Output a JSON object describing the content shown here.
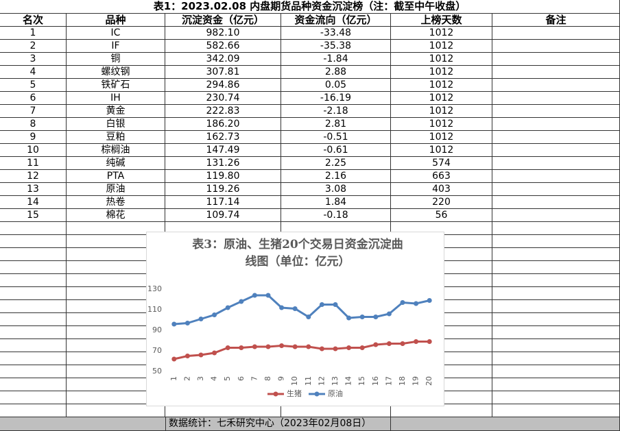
{
  "title": "表1：2023.02.08 内盘期货品种资金沉淀榜（注：截至中午收盘）",
  "table": {
    "header": [
      "名次",
      "品种",
      "沉淀资金（亿元）",
      "资金流向（亿元）",
      "上榜天数",
      "备注"
    ],
    "rows": [
      [
        "1",
        "IC",
        "982.10",
        "-33.48",
        "1012"
      ],
      [
        "2",
        "IF",
        "582.66",
        "-35.38",
        "1012"
      ],
      [
        "3",
        "铜",
        "342.09",
        "-1.84",
        "1012"
      ],
      [
        "4",
        "螺纹钢",
        "307.81",
        "2.88",
        "1012"
      ],
      [
        "5",
        "铁矿石",
        "294.86",
        "0.05",
        "1012"
      ],
      [
        "6",
        "IH",
        "230.74",
        "-16.19",
        "1012"
      ],
      [
        "7",
        "黄金",
        "222.83",
        "-2.18",
        "1012"
      ],
      [
        "8",
        "白银",
        "186.20",
        "2.81",
        "1012"
      ],
      [
        "9",
        "豆粕",
        "162.73",
        "-0.51",
        "1012"
      ],
      [
        "10",
        "棕榈油",
        "147.49",
        "-0.61",
        "1012"
      ],
      [
        "11",
        "纯碱",
        "131.26",
        "2.25",
        "574"
      ],
      [
        "12",
        "PTA",
        "119.80",
        "2.16",
        "663"
      ],
      [
        "13",
        "原油",
        "119.26",
        "3.08",
        "403"
      ],
      [
        "14",
        "热卷",
        "117.14",
        "1.84",
        "220"
      ],
      [
        "15",
        "棉花",
        "109.74",
        "-0.18",
        "56"
      ]
    ]
  },
  "footer": "数据统计：七禾研究中心（2023年02月08日）",
  "chart_data": {
    "type": "line",
    "title": "表3：原油、生猪20个交易日资金沉淀曲线图（单位：亿元）",
    "categories": [
      "1",
      "2",
      "3",
      "4",
      "5",
      "6",
      "7",
      "8",
      "9",
      "10",
      "11",
      "12",
      "13",
      "14",
      "15",
      "16",
      "17",
      "18",
      "19",
      "20"
    ],
    "series": [
      {
        "name": "生猪",
        "color": "#c0504d",
        "values": [
          62,
          65,
          66,
          68,
          73,
          73,
          74,
          74,
          75,
          74,
          74,
          72,
          72,
          73,
          73,
          76,
          77,
          77,
          79,
          79
        ]
      },
      {
        "name": "原油",
        "color": "#4f81bd",
        "values": [
          96,
          97,
          101,
          105,
          112,
          118,
          124,
          124,
          112,
          111,
          103,
          115,
          115,
          102,
          103,
          103,
          106,
          117,
          116,
          119
        ]
      }
    ],
    "ylim": [
      50,
      130
    ],
    "yticks": [
      50,
      70,
      90,
      110,
      130
    ],
    "grid": false,
    "legend": "bottom"
  }
}
